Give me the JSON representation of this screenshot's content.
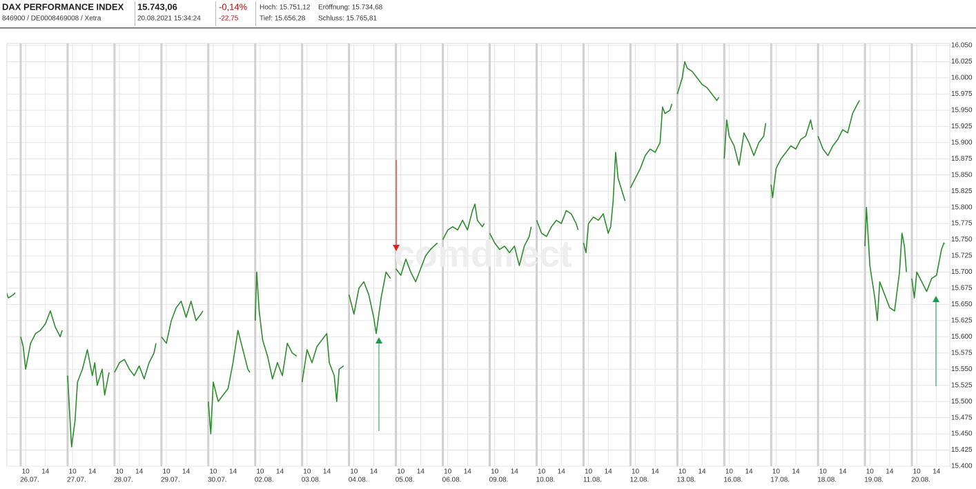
{
  "header": {
    "title": "DAX PERFORMANCE INDEX",
    "ident": "846900 / DE0008469008 / Xetra",
    "price": "15.743,06",
    "timestamp": "20.08.2021 15:34:24",
    "change_pct": "-0,14%",
    "change_abs": "-22,75",
    "high": "Hoch: 15.751,12",
    "open": "Eröffnung: 15.734,68",
    "low": "Tief: 15.656,28",
    "close": "Schluss: 15.765,81"
  },
  "chart_data": {
    "type": "line",
    "watermark": "comdirect",
    "color": "#2e8b2e",
    "grid": true,
    "xlim": [
      9,
      18.5
    ],
    "xticks": [
      10,
      14
    ],
    "ylim": [
      15400,
      16050
    ],
    "yticks": [
      {
        "value": 15400,
        "label": "15.400"
      },
      {
        "value": 15425,
        "label": "15.425"
      },
      {
        "value": 15450,
        "label": "15.450"
      },
      {
        "value": 15475,
        "label": "15.475"
      },
      {
        "value": 15500,
        "label": "15.500"
      },
      {
        "value": 15525,
        "label": "15.525"
      },
      {
        "value": 15550,
        "label": "15.550"
      },
      {
        "value": 15575,
        "label": "15.575"
      },
      {
        "value": 15600,
        "label": "15.600"
      },
      {
        "value": 15625,
        "label": "15.625"
      },
      {
        "value": 15650,
        "label": "15.650"
      },
      {
        "value": 15675,
        "label": "15.675"
      },
      {
        "value": 15700,
        "label": "15.700"
      },
      {
        "value": 15725,
        "label": "15.725"
      },
      {
        "value": 15750,
        "label": "15.750"
      },
      {
        "value": 15775,
        "label": "15.775"
      },
      {
        "value": 15800,
        "label": "15.800"
      },
      {
        "value": 15825,
        "label": "15.825"
      },
      {
        "value": 15850,
        "label": "15.850"
      },
      {
        "value": 15875,
        "label": "15.875"
      },
      {
        "value": 15900,
        "label": "15.900"
      },
      {
        "value": 15925,
        "label": "15.925"
      },
      {
        "value": 15950,
        "label": "15.950"
      },
      {
        "value": 15975,
        "label": "15.975"
      },
      {
        "value": 16000,
        "label": "16.000"
      },
      {
        "value": 16025,
        "label": "16.025"
      },
      {
        "value": 16050,
        "label": "16.050"
      }
    ],
    "days": [
      {
        "label": null,
        "x": [
          15,
          16,
          17,
          17.4
        ],
        "values": [
          15680,
          15660,
          15665,
          15668
        ]
      },
      {
        "label": "26.07.",
        "x": [
          9,
          9.5,
          10,
          11,
          12,
          13,
          14,
          15,
          16,
          17,
          17.4
        ],
        "values": [
          15600,
          15585,
          15550,
          15590,
          15605,
          15610,
          15620,
          15640,
          15615,
          15600,
          15610
        ]
      },
      {
        "label": "27.07.",
        "x": [
          9,
          9.5,
          9.8,
          10.5,
          11,
          12,
          13,
          14,
          14.5,
          15,
          16,
          16.5,
          17.4
        ],
        "values": [
          15540,
          15470,
          15430,
          15470,
          15530,
          15550,
          15580,
          15540,
          15560,
          15525,
          15550,
          15510,
          15545
        ]
      },
      {
        "label": "28.07.",
        "x": [
          9,
          10,
          11,
          12,
          13,
          14,
          15,
          16,
          17,
          17.4
        ],
        "values": [
          15545,
          15560,
          15565,
          15550,
          15540,
          15555,
          15535,
          15560,
          15575,
          15590
        ]
      },
      {
        "label": "29.07.",
        "x": [
          9,
          10,
          11,
          12,
          13,
          14,
          15,
          16,
          17,
          17.4
        ],
        "values": [
          15600,
          15590,
          15625,
          15645,
          15655,
          15630,
          15655,
          15625,
          15635,
          15640
        ]
      },
      {
        "label": "30.07.",
        "x": [
          9,
          9.5,
          10,
          11,
          12,
          13,
          14,
          15,
          16,
          17,
          17.4
        ],
        "values": [
          15500,
          15450,
          15530,
          15500,
          15510,
          15520,
          15560,
          15610,
          15580,
          15550,
          15545
        ]
      },
      {
        "label": "02.08.",
        "x": [
          9,
          9.3,
          9.8,
          10.5,
          11.5,
          12.5,
          13.5,
          14.5,
          15.5,
          16.5,
          17.4
        ],
        "values": [
          15625,
          15700,
          15640,
          15595,
          15570,
          15535,
          15560,
          15540,
          15590,
          15575,
          15570
        ]
      },
      {
        "label": "03.08.",
        "x": [
          9,
          10,
          11,
          12,
          13,
          14,
          14.5,
          15,
          15.5,
          16,
          16.5,
          17.4
        ],
        "values": [
          15530,
          15580,
          15560,
          15585,
          15595,
          15605,
          15560,
          15550,
          15540,
          15500,
          15550,
          15555
        ]
      },
      {
        "label": "04.08.",
        "x": [
          9,
          10,
          11,
          12,
          13,
          14,
          14.5,
          15.5,
          16.5,
          17.4
        ],
        "values": [
          15665,
          15635,
          15675,
          15685,
          15665,
          15630,
          15605,
          15660,
          15700,
          15690
        ]
      },
      {
        "label": "05.08.",
        "x": [
          9,
          10,
          11,
          12,
          13,
          14,
          15,
          16,
          17.4
        ],
        "values": [
          15705,
          15695,
          15720,
          15700,
          15685,
          15705,
          15725,
          15735,
          15745
        ]
      },
      {
        "label": "06.08.",
        "x": [
          9,
          10,
          11,
          12,
          13,
          14,
          15,
          15.5,
          16,
          17,
          17.4
        ],
        "values": [
          15750,
          15765,
          15770,
          15765,
          15780,
          15765,
          15795,
          15805,
          15780,
          15770,
          15775
        ]
      },
      {
        "label": "09.08.",
        "x": [
          9,
          10,
          11,
          12,
          13,
          14,
          15,
          16,
          17,
          17.4
        ],
        "values": [
          15760,
          15745,
          15735,
          15740,
          15730,
          15740,
          15710,
          15740,
          15755,
          15770
        ]
      },
      {
        "label": "10.08.",
        "x": [
          9,
          10,
          11,
          12,
          13,
          14,
          15,
          16,
          17,
          17.4
        ],
        "values": [
          15780,
          15760,
          15755,
          15770,
          15780,
          15775,
          15795,
          15790,
          15775,
          15765
        ]
      },
      {
        "label": "11.08.",
        "x": [
          9,
          9.5,
          10,
          11,
          12,
          13,
          14,
          14.5,
          15,
          15.5,
          16,
          17,
          17.4
        ],
        "values": [
          15745,
          15730,
          15775,
          15785,
          15780,
          15790,
          15760,
          15770,
          15810,
          15885,
          15845,
          15820,
          15810
        ]
      },
      {
        "label": "12.08.",
        "x": [
          9,
          10,
          11,
          12,
          13,
          14,
          15,
          15.5,
          16,
          17,
          17.4
        ],
        "values": [
          15830,
          15845,
          15860,
          15880,
          15890,
          15885,
          15900,
          15955,
          15945,
          15950,
          15960
        ]
      },
      {
        "label": "13.08.",
        "x": [
          9,
          10,
          10.5,
          11,
          12,
          13,
          14,
          15,
          16,
          17,
          17.4
        ],
        "values": [
          15975,
          16000,
          16025,
          16015,
          16010,
          16000,
          15990,
          15985,
          15975,
          15965,
          15970
        ]
      },
      {
        "label": "16.08.",
        "x": [
          9,
          9.5,
          10,
          11,
          12,
          13,
          14,
          15,
          16,
          17,
          17.4
        ],
        "values": [
          15875,
          15935,
          15910,
          15895,
          15865,
          15915,
          15900,
          15880,
          15900,
          15910,
          15930
        ]
      },
      {
        "label": "17.08.",
        "x": [
          9,
          9.3,
          10,
          11,
          12,
          13,
          14,
          15,
          16,
          17,
          17.4
        ],
        "values": [
          15835,
          15815,
          15860,
          15875,
          15885,
          15895,
          15890,
          15905,
          15910,
          15935,
          15920
        ]
      },
      {
        "label": "18.08.",
        "x": [
          9,
          10,
          11,
          12,
          13,
          14,
          15,
          16,
          17,
          17.4
        ],
        "values": [
          15910,
          15890,
          15880,
          15895,
          15905,
          15920,
          15915,
          15945,
          15960,
          15965
        ]
      },
      {
        "label": "19.08.",
        "x": [
          9,
          9.3,
          10,
          11,
          11.5,
          12,
          13,
          14,
          15,
          16,
          16.5,
          17,
          17.4
        ],
        "values": [
          15740,
          15800,
          15710,
          15660,
          15625,
          15685,
          15665,
          15645,
          15640,
          15700,
          15760,
          15740,
          15700
        ]
      },
      {
        "label": "20.08.",
        "x": [
          9,
          9.5,
          10,
          11,
          12,
          13,
          14,
          14.5,
          15,
          15.5,
          15.57
        ],
        "values": [
          15690,
          15660,
          15700,
          15685,
          15670,
          15690,
          15695,
          15715,
          15735,
          15745,
          15743.06
        ]
      }
    ]
  }
}
